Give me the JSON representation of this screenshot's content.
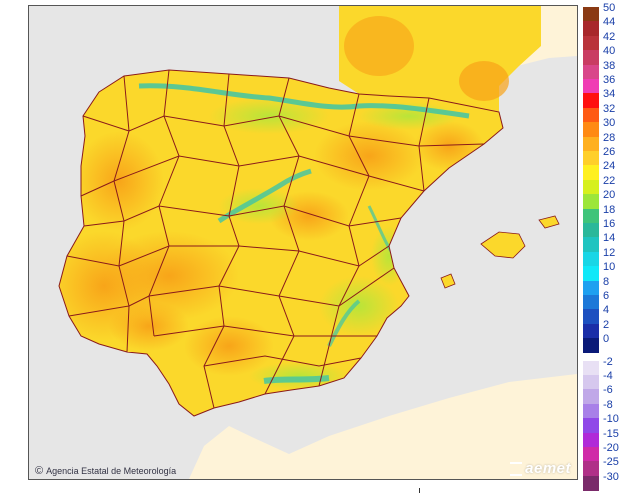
{
  "map": {
    "credit_text": "Agencia Estatal de Meteorología",
    "credit_symbol": "©",
    "logo_text": "aemet",
    "colors": {
      "sea": "#e6e6e6",
      "neighbor_land": "#fef3d8",
      "land_base": "#fbd82b",
      "warm": "#f8a218",
      "cool": "#b2e63a",
      "cold": "#3fc4a6",
      "border": "#8a1a1a"
    }
  },
  "legend": {
    "entries": [
      {
        "label": "50",
        "color": "#8a3a14"
      },
      {
        "label": "44",
        "color": "#a8282b"
      },
      {
        "label": "42",
        "color": "#b9333a"
      },
      {
        "label": "40",
        "color": "#c93c63"
      },
      {
        "label": "38",
        "color": "#d9468a"
      },
      {
        "label": "36",
        "color": "#f03cb4"
      },
      {
        "label": "34",
        "color": "#ff1010"
      },
      {
        "label": "32",
        "color": "#ff5a14"
      },
      {
        "label": "30",
        "color": "#ff8a14"
      },
      {
        "label": "28",
        "color": "#ffb020"
      },
      {
        "label": "26",
        "color": "#ffcf2a"
      },
      {
        "label": "24",
        "color": "#fff020"
      },
      {
        "label": "22",
        "color": "#d6f01e"
      },
      {
        "label": "20",
        "color": "#9ce63a"
      },
      {
        "label": "18",
        "color": "#3fc47a"
      },
      {
        "label": "16",
        "color": "#2ab89a"
      },
      {
        "label": "14",
        "color": "#1fc4c0"
      },
      {
        "label": "12",
        "color": "#19d6e6"
      },
      {
        "label": "10",
        "color": "#10e8f8"
      },
      {
        "label": "8",
        "color": "#1ea0f0"
      },
      {
        "label": "6",
        "color": "#1c78d8"
      },
      {
        "label": "4",
        "color": "#1c50c0"
      },
      {
        "label": "2",
        "color": "#1a2ea8"
      },
      {
        "label": "0",
        "color": "#0a1a78"
      },
      {
        "label": "-2",
        "color": "#e8e0f4"
      },
      {
        "label": "-4",
        "color": "#d6c8ee"
      },
      {
        "label": "-6",
        "color": "#c0a8e8"
      },
      {
        "label": "-8",
        "color": "#a880e8"
      },
      {
        "label": "-10",
        "color": "#9048e8"
      },
      {
        "label": "-15",
        "color": "#b02ad8"
      },
      {
        "label": "-20",
        "color": "#d02aa8"
      },
      {
        "label": "-25",
        "color": "#b03088"
      },
      {
        "label": "-30",
        "color": "#7a2a6a"
      }
    ]
  }
}
